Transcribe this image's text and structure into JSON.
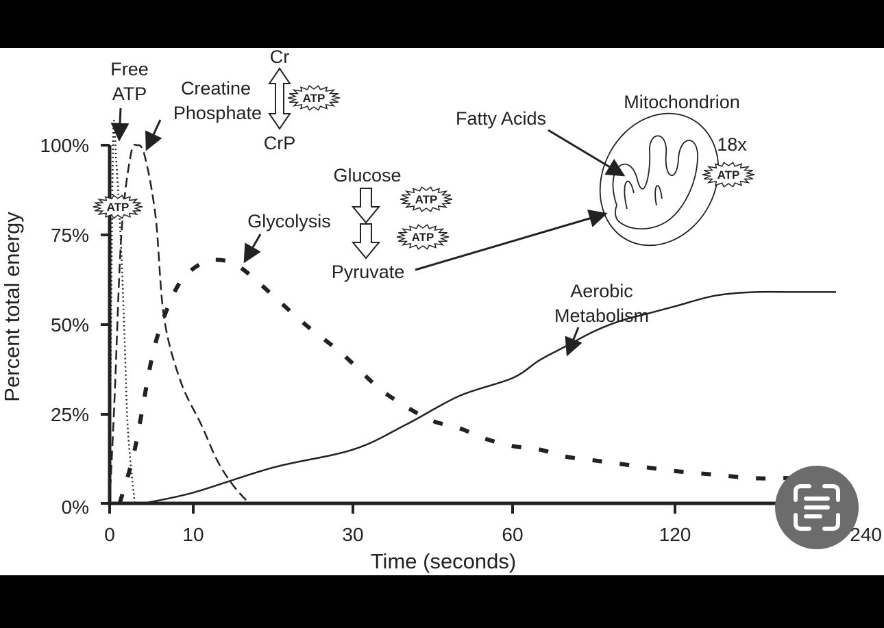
{
  "chart_data": {
    "type": "line",
    "ylabel": "Percent total energy",
    "xlabel": "Time (seconds)",
    "x_ticks": [
      "0",
      "10",
      "30",
      "60",
      "120",
      "240"
    ],
    "y_ticks": [
      "0%",
      "25%",
      "50%",
      "75%",
      "100%"
    ],
    "ylim": [
      0,
      100
    ],
    "x_scale": "nonlinear",
    "series": [
      {
        "key": "free_atp",
        "style": "dotted",
        "x": [
          0,
          0.4,
          0.8,
          1.4,
          1.8,
          2.2,
          3.0
        ],
        "y": [
          0,
          100,
          95,
          70,
          45,
          20,
          0
        ]
      },
      {
        "key": "creatine_phosphate",
        "style": "dashed",
        "x": [
          0,
          0.6,
          1.4,
          2.5,
          3.3,
          4.2,
          5.5,
          6.5,
          8.5,
          11,
          13,
          15,
          17
        ],
        "y": [
          0,
          30,
          75,
          97,
          100,
          97,
          80,
          52,
          34,
          22,
          12,
          5,
          0
        ]
      },
      {
        "key": "glycolysis",
        "style": "heavy-dashed",
        "x": [
          1.2,
          3,
          5,
          6.5,
          8.5,
          11,
          13,
          15,
          17,
          20,
          24,
          28,
          30,
          35,
          40,
          45,
          50,
          55,
          60,
          70,
          80,
          90,
          100,
          110,
          120,
          150,
          180,
          210,
          240
        ],
        "y": [
          0,
          15,
          40,
          52,
          62,
          67,
          68,
          67,
          64,
          58,
          50,
          43,
          39,
          32,
          27,
          23,
          21,
          18,
          16,
          15,
          13,
          12,
          11,
          10,
          9,
          8,
          7,
          7,
          6
        ]
      },
      {
        "key": "aerobic",
        "style": "solid",
        "x": [
          4,
          10,
          20,
          30,
          40,
          50,
          60,
          70,
          80,
          90,
          100,
          110,
          120,
          150,
          180,
          210,
          240
        ],
        "y": [
          0,
          3,
          10,
          15,
          22,
          30,
          35,
          40,
          44,
          48,
          51,
          53,
          55,
          58,
          59,
          59,
          59
        ]
      }
    ],
    "annotations": {
      "free_atp": [
        "Free",
        "ATP"
      ],
      "creatine_phosphate": [
        "Creatine",
        "Phosphate"
      ],
      "cr": "Cr",
      "crp": "CrP",
      "glucose": "Glucose",
      "glycolysis": "Glycolysis",
      "pyruvate": "Pyruvate",
      "fatty_acids": "Fatty Acids",
      "mitochondrion": "Mitochondrion",
      "atp_yield": "18x",
      "aerobic": [
        "Aerobic",
        "Metabolism"
      ],
      "atp_burst": "ATP"
    }
  },
  "colors": {
    "background_bars": "#000000",
    "plot_background": "#ffffff",
    "ink": "#222222",
    "lens_button": "#6c6c6c",
    "lens_icon": "#ffffff"
  },
  "overlay": {
    "lens_button_icon": "lens-text-scan-icon"
  }
}
